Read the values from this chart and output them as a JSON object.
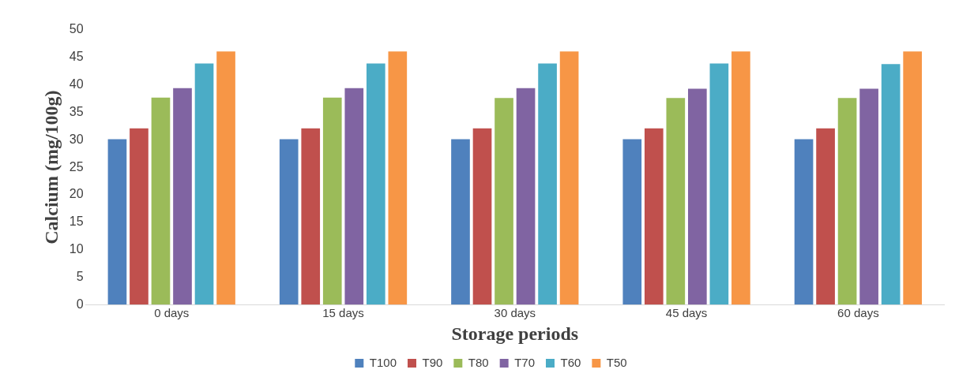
{
  "chart_data": {
    "type": "bar",
    "xlabel": "Storage periods",
    "ylabel": "Calcium (mg/100g)",
    "categories": [
      "0 days",
      "15 days",
      "30 days",
      "45 days",
      "60 days"
    ],
    "series": [
      {
        "name": "T100",
        "color": "#4f81bd",
        "values": [
          30.1,
          30.1,
          30.1,
          30.1,
          30.1
        ]
      },
      {
        "name": "T90",
        "color": "#c0504d",
        "values": [
          32.1,
          32.1,
          32.1,
          32.1,
          32.1
        ]
      },
      {
        "name": "T80",
        "color": "#9bbb59",
        "values": [
          37.7,
          37.7,
          37.6,
          37.6,
          37.6
        ]
      },
      {
        "name": "T70",
        "color": "#8064a2",
        "values": [
          39.4,
          39.4,
          39.4,
          39.3,
          39.3
        ]
      },
      {
        "name": "T60",
        "color": "#4bacc6",
        "values": [
          43.9,
          43.9,
          43.9,
          43.9,
          43.8
        ]
      },
      {
        "name": "T50",
        "color": "#f79646",
        "values": [
          46.1,
          46.1,
          46.1,
          46.1,
          46.1
        ]
      }
    ],
    "ylim": [
      0,
      50
    ],
    "yticks": [
      0,
      5,
      10,
      15,
      20,
      25,
      30,
      35,
      40,
      45,
      50
    ],
    "grid": false,
    "legend": "bottom"
  }
}
